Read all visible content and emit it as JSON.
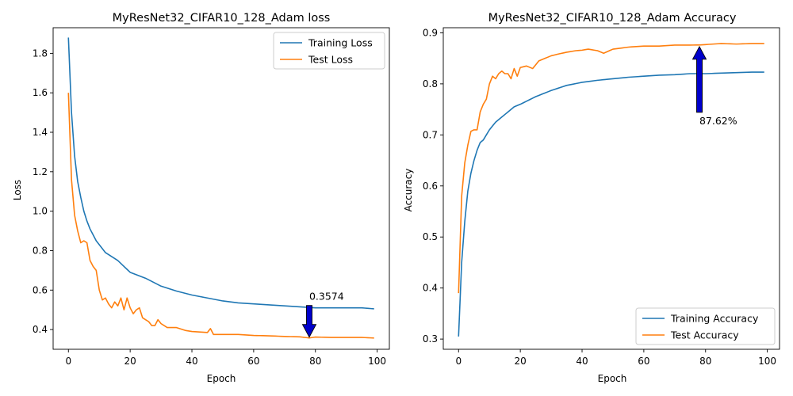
{
  "colors": {
    "training": "#1f77b4",
    "test": "#ff7f0e",
    "arrow_fill": "#0000cc",
    "arrow_stroke": "#000000"
  },
  "chart_data": [
    {
      "type": "line",
      "title": "MyResNet32_CIFAR10_128_Adam loss",
      "xlabel": "Epoch",
      "ylabel": "Loss",
      "xlim": [
        -4.95,
        103.95
      ],
      "ylim": [
        0.3,
        1.93
      ],
      "xticks": [
        0,
        20,
        40,
        60,
        80,
        100
      ],
      "yticks": [
        0.4,
        0.6,
        0.8,
        1.0,
        1.2,
        1.4,
        1.6,
        1.8
      ],
      "ytick_labels": [
        "0.4",
        "0.6",
        "0.8",
        "1.0",
        "1.2",
        "1.4",
        "1.6",
        "1.8"
      ],
      "grid": false,
      "legend": "top-right",
      "series": [
        {
          "name": "Training Loss",
          "color_key": "training",
          "anchors": [
            [
              0,
              1.88
            ],
            [
              1,
              1.5
            ],
            [
              2,
              1.28
            ],
            [
              3,
              1.15
            ],
            [
              4,
              1.07
            ],
            [
              5,
              1.0
            ],
            [
              6,
              0.95
            ],
            [
              7,
              0.91
            ],
            [
              8,
              0.88
            ],
            [
              9,
              0.85
            ],
            [
              10,
              0.83
            ],
            [
              12,
              0.79
            ],
            [
              14,
              0.77
            ],
            [
              16,
              0.75
            ],
            [
              18,
              0.72
            ],
            [
              20,
              0.69
            ],
            [
              25,
              0.66
            ],
            [
              30,
              0.62
            ],
            [
              35,
              0.595
            ],
            [
              40,
              0.575
            ],
            [
              45,
              0.56
            ],
            [
              50,
              0.545
            ],
            [
              55,
              0.535
            ],
            [
              60,
              0.53
            ],
            [
              65,
              0.525
            ],
            [
              70,
              0.52
            ],
            [
              75,
              0.515
            ],
            [
              80,
              0.51
            ],
            [
              85,
              0.51
            ],
            [
              90,
              0.51
            ],
            [
              95,
              0.51
            ],
            [
              99,
              0.505
            ]
          ]
        },
        {
          "name": "Test Loss",
          "color_key": "test",
          "anchors": [
            [
              0,
              1.6
            ],
            [
              1,
              1.16
            ],
            [
              2,
              0.98
            ],
            [
              3,
              0.9
            ],
            [
              4,
              0.84
            ],
            [
              5,
              0.85
            ],
            [
              6,
              0.84
            ],
            [
              7,
              0.75
            ],
            [
              8,
              0.72
            ],
            [
              9,
              0.7
            ],
            [
              10,
              0.6
            ],
            [
              11,
              0.55
            ],
            [
              12,
              0.56
            ],
            [
              13,
              0.53
            ],
            [
              14,
              0.51
            ],
            [
              15,
              0.54
            ],
            [
              16,
              0.52
            ],
            [
              17,
              0.56
            ],
            [
              18,
              0.5
            ],
            [
              19,
              0.56
            ],
            [
              20,
              0.51
            ],
            [
              21,
              0.48
            ],
            [
              22,
              0.5
            ],
            [
              23,
              0.51
            ],
            [
              24,
              0.46
            ],
            [
              25,
              0.45
            ],
            [
              26,
              0.44
            ],
            [
              27,
              0.42
            ],
            [
              28,
              0.42
            ],
            [
              29,
              0.45
            ],
            [
              30,
              0.43
            ],
            [
              32,
              0.41
            ],
            [
              35,
              0.41
            ],
            [
              38,
              0.395
            ],
            [
              40,
              0.39
            ],
            [
              45,
              0.385
            ],
            [
              46,
              0.405
            ],
            [
              47,
              0.375
            ],
            [
              50,
              0.375
            ],
            [
              55,
              0.375
            ],
            [
              60,
              0.37
            ],
            [
              65,
              0.368
            ],
            [
              70,
              0.365
            ],
            [
              75,
              0.363
            ],
            [
              78,
              0.3574
            ],
            [
              80,
              0.362
            ],
            [
              85,
              0.36
            ],
            [
              90,
              0.36
            ],
            [
              95,
              0.36
            ],
            [
              99,
              0.357
            ]
          ]
        }
      ],
      "annotation": {
        "text": "0.3574",
        "x": 78,
        "y": 0.3574,
        "direction": "down"
      }
    },
    {
      "type": "line",
      "title": "MyResNet32_CIFAR10_128_Adam Accuracy",
      "xlabel": "Epoch",
      "ylabel": "Accuracy",
      "xlim": [
        -4.95,
        103.95
      ],
      "ylim": [
        0.28,
        0.91
      ],
      "xticks": [
        0,
        20,
        40,
        60,
        80,
        100
      ],
      "yticks": [
        0.3,
        0.4,
        0.5,
        0.6,
        0.7,
        0.8,
        0.9
      ],
      "ytick_labels": [
        "0.3",
        "0.4",
        "0.5",
        "0.6",
        "0.7",
        "0.8",
        "0.9"
      ],
      "grid": false,
      "legend": "bottom-right",
      "series": [
        {
          "name": "Training Accuracy",
          "color_key": "training",
          "anchors": [
            [
              0,
              0.305
            ],
            [
              1,
              0.45
            ],
            [
              2,
              0.53
            ],
            [
              3,
              0.59
            ],
            [
              4,
              0.625
            ],
            [
              5,
              0.65
            ],
            [
              6,
              0.67
            ],
            [
              7,
              0.685
            ],
            [
              8,
              0.69
            ],
            [
              10,
              0.71
            ],
            [
              12,
              0.725
            ],
            [
              15,
              0.74
            ],
            [
              18,
              0.755
            ],
            [
              20,
              0.76
            ],
            [
              25,
              0.775
            ],
            [
              30,
              0.787
            ],
            [
              35,
              0.797
            ],
            [
              40,
              0.803
            ],
            [
              45,
              0.807
            ],
            [
              50,
              0.81
            ],
            [
              55,
              0.813
            ],
            [
              60,
              0.815
            ],
            [
              65,
              0.817
            ],
            [
              70,
              0.818
            ],
            [
              75,
              0.82
            ],
            [
              80,
              0.82
            ],
            [
              85,
              0.821
            ],
            [
              90,
              0.822
            ],
            [
              95,
              0.823
            ],
            [
              99,
              0.823
            ]
          ]
        },
        {
          "name": "Test Accuracy",
          "color_key": "test",
          "anchors": [
            [
              0,
              0.39
            ],
            [
              1,
              0.58
            ],
            [
              2,
              0.645
            ],
            [
              3,
              0.68
            ],
            [
              4,
              0.707
            ],
            [
              5,
              0.71
            ],
            [
              6,
              0.71
            ],
            [
              7,
              0.745
            ],
            [
              8,
              0.76
            ],
            [
              9,
              0.77
            ],
            [
              10,
              0.8
            ],
            [
              11,
              0.815
            ],
            [
              12,
              0.81
            ],
            [
              13,
              0.82
            ],
            [
              14,
              0.825
            ],
            [
              15,
              0.82
            ],
            [
              16,
              0.82
            ],
            [
              17,
              0.81
            ],
            [
              18,
              0.83
            ],
            [
              19,
              0.815
            ],
            [
              20,
              0.832
            ],
            [
              22,
              0.835
            ],
            [
              24,
              0.83
            ],
            [
              26,
              0.845
            ],
            [
              28,
              0.85
            ],
            [
              30,
              0.855
            ],
            [
              32,
              0.858
            ],
            [
              35,
              0.862
            ],
            [
              38,
              0.865
            ],
            [
              40,
              0.866
            ],
            [
              42,
              0.868
            ],
            [
              45,
              0.865
            ],
            [
              47,
              0.86
            ],
            [
              50,
              0.868
            ],
            [
              55,
              0.872
            ],
            [
              60,
              0.874
            ],
            [
              65,
              0.874
            ],
            [
              70,
              0.876
            ],
            [
              75,
              0.876
            ],
            [
              78,
              0.8762
            ],
            [
              80,
              0.877
            ],
            [
              85,
              0.879
            ],
            [
              90,
              0.878
            ],
            [
              95,
              0.879
            ],
            [
              99,
              0.879
            ]
          ]
        }
      ],
      "annotation": {
        "text": "87.62%",
        "x": 78,
        "y": 0.8762,
        "direction": "up"
      }
    }
  ]
}
